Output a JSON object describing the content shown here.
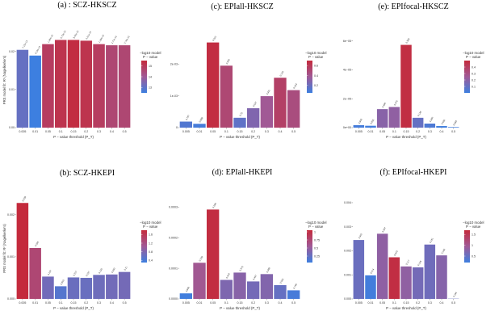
{
  "chart_data": [
    {
      "type": "bar",
      "title": "(a) : SCZ-HKSCZ",
      "xlabel": "P − value threshold (P_T)",
      "ylabel": "PRS model fit: R² (Nagelkerke's)",
      "categories": [
        "0.005",
        "0.01",
        "0.05",
        "0.1",
        "0.15",
        "0.2",
        "0.3",
        "0.4",
        "0.5"
      ],
      "values": [
        0.0204,
        0.0189,
        0.0219,
        0.023,
        0.023,
        0.0228,
        0.0219,
        0.0216,
        0.0216
      ],
      "bar_labels": [
        "7.15e-14",
        "3.10e-13",
        "1.35e-15",
        "6.70e-16",
        "3.66e-16",
        "6.61e-16",
        "1.34e-15",
        "2.77e-15",
        "2.74e-15"
      ],
      "color_values": [
        13.1,
        12.5,
        14.9,
        15.2,
        15.4,
        15.2,
        14.9,
        14.6,
        14.6
      ],
      "ylim": [
        0,
        0.025
      ],
      "yticks": [
        0,
        0.01,
        0.02
      ],
      "ytick_labels": [
        "0.00",
        "0.01",
        "0.02"
      ],
      "legend": {
        "title_line1": "−log10 model",
        "title_line2": "P − value",
        "ticks": [
          13,
          14,
          15
        ],
        "range": [
          12.5,
          15.5
        ],
        "colors": [
          "#3d7fe0",
          "#c42a3c"
        ]
      }
    },
    {
      "type": "bar",
      "title": "(c): EPIall-HKSCZ",
      "xlabel": "P − value threshold (P_T)",
      "ylabel": "",
      "categories": [
        "0.005",
        "0.01",
        "0.05",
        "0.1",
        "0.15",
        "0.2",
        "0.3",
        "0.4",
        "0.5"
      ],
      "values": [
        0.00019,
        0.00012,
        0.00268,
        0.00195,
        0.00031,
        0.00061,
        0.00099,
        0.00157,
        0.00118
      ],
      "bar_labels": [
        "0.787",
        "0.888",
        "0.021",
        "0.050",
        "0.75",
        "0.537",
        "0.331",
        "0.165",
        "0.263"
      ],
      "color_values": [
        0.12,
        0.08,
        0.68,
        0.5,
        0.16,
        0.27,
        0.38,
        0.55,
        0.46
      ],
      "ylim": [
        0,
        0.003
      ],
      "yticks": [
        0,
        0.001,
        0.002
      ],
      "ytick_labels": [
        "0",
        "1e-03",
        "2e-03"
      ],
      "legend": {
        "title_line1": "−log10 model",
        "title_line2": "P − value",
        "ticks": [
          0.2,
          0.4,
          0.6
        ],
        "range": [
          0.05,
          0.7
        ],
        "colors": [
          "#3d7fe0",
          "#c42a3c"
        ]
      }
    },
    {
      "type": "bar",
      "title": "(e): EPIfocal-HKSCZ",
      "xlabel": "P − value threshold (P_T)",
      "ylabel": "",
      "categories": [
        "0.005",
        "0.01",
        "0.05",
        "0.1",
        "0.15",
        "0.2",
        "0.3",
        "0.4",
        "0.5"
      ],
      "values": [
        1.7e-06,
        1.3e-06,
        1.28e-05,
        1.43e-05,
        5.73e-05,
        6.8e-06,
        2.8e-06,
        1.1e-06,
        4e-07
      ],
      "bar_labels": [
        "0.805",
        "0.935",
        "0.496",
        "0.375",
        "0.380",
        "0.148",
        "0.286",
        "0.680",
        "0.883"
      ],
      "color_values": [
        0.02,
        0.01,
        0.19,
        0.21,
        0.48,
        0.1,
        0.04,
        0.01,
        0.01
      ],
      "ylim": [
        0,
        6.6e-05
      ],
      "yticks": [
        0,
        2e-05,
        4e-05,
        6e-05
      ],
      "ytick_labels": [
        "0e+00",
        "2e−05",
        "4e−05",
        "6e−05"
      ],
      "legend": {
        "title_line1": "−log10 model",
        "title_line2": "P − value",
        "ticks": [
          0.1,
          0.2,
          0.3,
          0.4
        ],
        "range": [
          0,
          0.5
        ],
        "colors": [
          "#3d7fe0",
          "#c42a3c"
        ]
      }
    },
    {
      "type": "bar",
      "title": "(b): SCZ-HKEPI",
      "xlabel": "P − value threshold (P_T)",
      "ylabel": "PRS model fit: R² (Nagelkerke's)",
      "categories": [
        "0.005",
        "0.01",
        "0.05",
        "0.1",
        "0.15",
        "0.2",
        "0.3",
        "0.4",
        "0.5"
      ],
      "values": [
        0.00228,
        0.00121,
        0.00053,
        0.0003,
        0.00051,
        0.0005,
        0.00057,
        0.00058,
        0.00064
      ],
      "bar_labels": [
        "0.008",
        "0.045",
        "0.207",
        "0.350",
        "0.227",
        "0.237",
        "0.225",
        "0.200",
        "0.21"
      ],
      "color_values": [
        2.08,
        1.34,
        0.7,
        0.48,
        0.64,
        0.63,
        0.67,
        0.7,
        0.72
      ],
      "ylim": [
        0,
        0.0024
      ],
      "yticks": [
        0,
        0.001,
        0.002
      ],
      "ytick_labels": [
        "0.000",
        "0.001",
        "0.002"
      ],
      "legend": {
        "title_line1": "−log10 model",
        "title_line2": "P − value",
        "ticks": [
          0.4,
          0.8,
          1.2,
          1.6
        ],
        "range": [
          0.3,
          1.8
        ],
        "colors": [
          "#3d7fe0",
          "#c42a3c"
        ]
      }
    },
    {
      "type": "bar",
      "title": "(d): EPIall-HKEPI",
      "xlabel": "P − value threshold (P_T)",
      "ylabel": "",
      "categories": [
        "0.005",
        "0.01",
        "0.05",
        "0.1",
        "0.15",
        "0.2",
        "0.3",
        "0.4",
        "0.5"
      ],
      "values": [
        1.8e-05,
        0.000118,
        0.000292,
        6.2e-05,
        8.6e-05,
        5.7e-05,
        8.1e-05,
        4.5e-05,
        2.8e-05
      ],
      "bar_labels": [
        "0.848",
        "0.269",
        "0.095",
        "0.419",
        "0.375",
        "0.467",
        "0.399",
        "0.566",
        "0.796"
      ],
      "color_values": [
        0.07,
        0.57,
        1.02,
        0.38,
        0.43,
        0.33,
        0.4,
        0.25,
        0.1
      ],
      "ylim": [
        0,
        0.00033
      ],
      "yticks": [
        0,
        0.0001,
        0.0002,
        0.0003
      ],
      "ytick_labels": [
        "0.0000",
        "0.0001",
        "0.0002",
        "0.0003"
      ],
      "legend": {
        "title_line1": "−log10 model",
        "title_line2": "P − value",
        "ticks": [
          0.25,
          0.5,
          0.75,
          1.0
        ],
        "range": [
          0.05,
          1.05
        ],
        "colors": [
          "#3d7fe0",
          "#c42a3c"
        ]
      }
    },
    {
      "type": "bar",
      "title": "(f): EPIfocal-HKEPI",
      "xlabel": "P − value threshold (P_T)",
      "ylabel": "",
      "categories": [
        "0.005",
        "0.01",
        "0.05",
        "0.1",
        "0.15",
        "0.2",
        "0.3",
        "0.4",
        "0.5"
      ],
      "values": [
        0.00245,
        0.00098,
        0.00271,
        0.00173,
        0.00135,
        0.00131,
        0.00226,
        0.00181,
        1e-05
      ],
      "bar_labels": [
        "0.462",
        "0.574",
        "0.097",
        "0.023",
        "0.117",
        "0.159",
        "0.181",
        "0.180",
        "0.196"
      ],
      "color_values": [
        0.54,
        0.24,
        0.82,
        1.64,
        0.83,
        0.62,
        0.58,
        0.75,
        0.51
      ],
      "ylim": [
        0,
        0.0042
      ],
      "yticks": [
        0,
        0.001,
        0.002,
        0.003,
        0.004
      ],
      "ytick_labels": [
        "0.000",
        "0.001",
        "0.002",
        "0.003",
        "0.004"
      ],
      "legend": {
        "title_line1": "−log10 model",
        "title_line2": "P − value",
        "ticks": [
          0.5,
          1.0,
          1.5
        ],
        "range": [
          0.2,
          1.7
        ],
        "colors": [
          "#3d7fe0",
          "#c42a3c"
        ]
      }
    }
  ]
}
